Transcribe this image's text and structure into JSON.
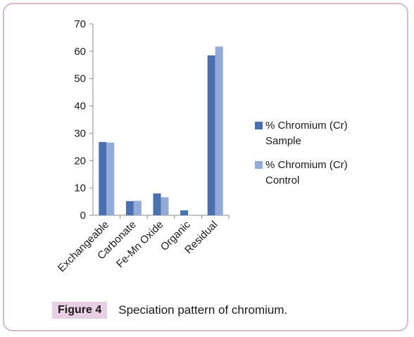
{
  "chart_data": {
    "type": "bar",
    "categories": [
      "Exchangeable",
      "Carbonate",
      "Fe-Mn Oxide",
      "Organic",
      "Residual"
    ],
    "series": [
      {
        "name": "% Chromium (Cr) Sample",
        "values": [
          26.8,
          5.2,
          8.0,
          1.8,
          58.5
        ],
        "color": "#4a71ad"
      },
      {
        "name": "% Chromium (Cr) Control",
        "values": [
          26.6,
          5.3,
          6.6,
          0,
          61.7
        ],
        "color": "#94abd8"
      }
    ],
    "y_ticks": [
      "0",
      "10",
      "20",
      "30",
      "40",
      "50",
      "60",
      "70"
    ],
    "ylim": [
      0,
      70
    ],
    "grid": false,
    "legend_position": "right"
  },
  "caption": {
    "label": "Figure 4",
    "text": "Speciation pattern of chromium."
  },
  "colors": {
    "frame_border": "#d7b9d1",
    "caption_label_bg": "#e8cfe3"
  }
}
